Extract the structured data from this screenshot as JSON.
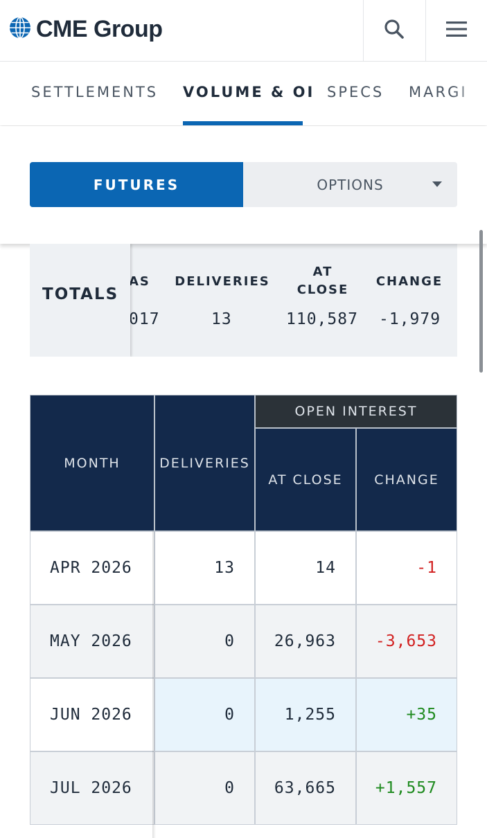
{
  "header": {
    "brand": "CME Group",
    "icons": {
      "logo": "globe-icon",
      "search": "search-icon",
      "menu": "hamburger-menu-icon"
    }
  },
  "tabs": [
    {
      "label": "SETTLEMENTS",
      "active": false
    },
    {
      "label": "VOLUME & OI",
      "active": true
    },
    {
      "label": "SPECS",
      "active": false
    },
    {
      "label": "MARGI",
      "active": false
    }
  ],
  "product_toggle": {
    "futures": "FUTURES",
    "options": "OPTIONS",
    "selected": "FUTURES"
  },
  "totals": {
    "label": "TOTALS",
    "columns": [
      "AS",
      "DELIVERIES",
      "AT CLOSE",
      "CHANGE"
    ],
    "values": [
      "017",
      "13",
      "110,587",
      "-1,979"
    ]
  },
  "table": {
    "headers": {
      "month": "MONTH",
      "deliveries": "DELIVERIES",
      "open_interest": "OPEN INTEREST",
      "at_close": "AT CLOSE",
      "change": "CHANGE"
    },
    "rows": [
      {
        "month": "APR 2026",
        "deliveries": "13",
        "at_close": "14",
        "change": "-1"
      },
      {
        "month": "MAY 2026",
        "deliveries": "0",
        "at_close": "26,963",
        "change": "-3,653"
      },
      {
        "month": "JUN 2026",
        "deliveries": "0",
        "at_close": "1,255",
        "change": "+35"
      },
      {
        "month": "JUL 2026",
        "deliveries": "0",
        "at_close": "63,665",
        "change": "+1,557"
      }
    ]
  },
  "colors": {
    "accent": "#0b66b3",
    "header_navy": "#13294b",
    "negative": "#d22020",
    "positive": "#1e8a1e"
  }
}
